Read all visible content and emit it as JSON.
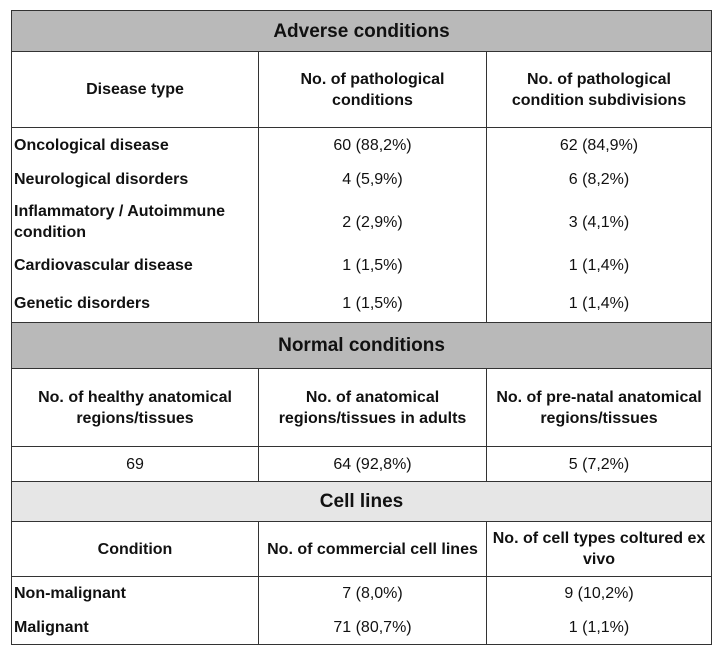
{
  "adverse": {
    "title": "Adverse conditions",
    "headers": [
      "Disease type",
      "No. of pathological conditions",
      "No. of pathological condition subdivisions"
    ],
    "rows": [
      {
        "label": "Oncological disease",
        "conditions": "60 (88,2%)",
        "subdivisions": "62 (84,9%)"
      },
      {
        "label": "Neurological disorders",
        "conditions": "4 (5,9%)",
        "subdivisions": "6 (8,2%)"
      },
      {
        "label": "Inflammatory / Autoimmune condition",
        "conditions": "2 (2,9%)",
        "subdivisions": "3 (4,1%)"
      },
      {
        "label": "Cardiovascular disease",
        "conditions": "1 (1,5%)",
        "subdivisions": "1 (1,4%)"
      },
      {
        "label": "Genetic disorders",
        "conditions": "1 (1,5%)",
        "subdivisions": "1 (1,4%)"
      }
    ]
  },
  "normal": {
    "title": "Normal conditions",
    "headers": [
      "No. of healthy anatomical regions/tissues",
      "No. of anatomical regions/tissues in adults",
      "No. of pre-natal anatomical regions/tissues"
    ],
    "values": [
      "69",
      "64 (92,8%)",
      "5 (7,2%)"
    ]
  },
  "cell_lines": {
    "title": "Cell lines",
    "headers": [
      "Condition",
      "No. of commercial cell lines",
      "No. of cell types coltured ex vivo"
    ],
    "rows": [
      {
        "label": "Non-malignant",
        "commercial": "7 (8,0%)",
        "ex_vivo": "9 (10,2%)"
      },
      {
        "label": "Malignant",
        "commercial": "71 (80,7%)",
        "ex_vivo": "1 (1,1%)"
      }
    ]
  }
}
